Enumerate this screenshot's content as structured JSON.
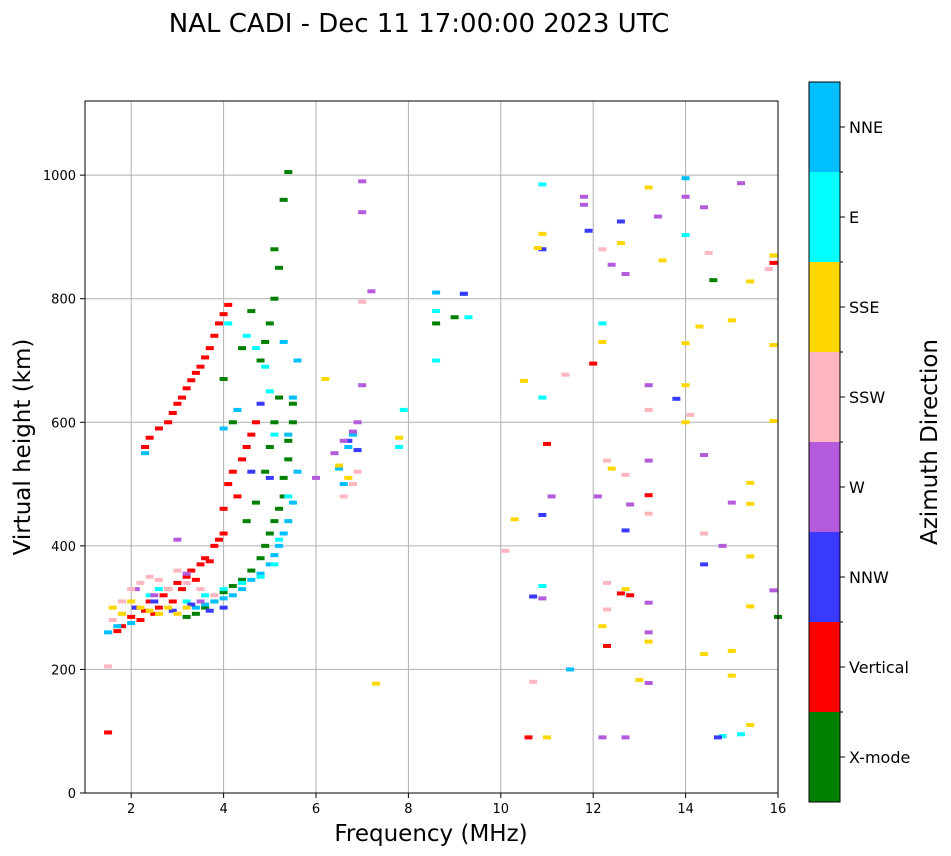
{
  "chart_data": {
    "type": "scatter",
    "title": "NAL CADI - Dec 11 17:00:00 2023 UTC",
    "xlabel": "Frequency (MHz)",
    "ylabel": "Virtual height (km)",
    "xlim": [
      1,
      16
    ],
    "ylim": [
      0,
      1120
    ],
    "xticks": [
      2,
      4,
      6,
      8,
      10,
      12,
      14,
      16
    ],
    "yticks": [
      0,
      200,
      400,
      600,
      800,
      1000
    ],
    "grid": true,
    "colorbar": {
      "label": "Azimuth Direction",
      "categories": [
        {
          "name": "X-mode",
          "color": "#008000"
        },
        {
          "name": "Vertical",
          "color": "#ff0000"
        },
        {
          "name": "NNW",
          "color": "#3a3aff"
        },
        {
          "name": "W",
          "color": "#b45adc"
        },
        {
          "name": "SSW",
          "color": "#ffb6c1"
        },
        {
          "name": "SSE",
          "color": "#ffd700"
        },
        {
          "name": "E",
          "color": "#00ffff"
        },
        {
          "name": "NNE",
          "color": "#00bfff"
        }
      ]
    },
    "series": [
      {
        "name": "Vertical",
        "points": [
          [
            1.5,
            98
          ],
          [
            1.7,
            262
          ],
          [
            1.8,
            270
          ],
          [
            2.0,
            285
          ],
          [
            2.1,
            300
          ],
          [
            2.2,
            280
          ],
          [
            2.3,
            295
          ],
          [
            2.4,
            310
          ],
          [
            2.5,
            290
          ],
          [
            2.6,
            300
          ],
          [
            2.7,
            320
          ],
          [
            2.8,
            330
          ],
          [
            2.9,
            310
          ],
          [
            3.0,
            340
          ],
          [
            3.1,
            330
          ],
          [
            3.2,
            350
          ],
          [
            3.3,
            360
          ],
          [
            3.4,
            345
          ],
          [
            3.5,
            370
          ],
          [
            3.6,
            380
          ],
          [
            3.7,
            375
          ],
          [
            3.8,
            400
          ],
          [
            3.9,
            410
          ],
          [
            4.0,
            420
          ],
          [
            4.0,
            460
          ],
          [
            4.1,
            500
          ],
          [
            4.2,
            520
          ],
          [
            4.3,
            480
          ],
          [
            4.4,
            540
          ],
          [
            4.5,
            560
          ],
          [
            4.6,
            580
          ],
          [
            4.7,
            600
          ],
          [
            2.3,
            560
          ],
          [
            2.4,
            575
          ],
          [
            2.6,
            590
          ],
          [
            2.8,
            600
          ],
          [
            2.9,
            615
          ],
          [
            3.0,
            630
          ],
          [
            3.1,
            640
          ],
          [
            3.2,
            655
          ],
          [
            3.3,
            668
          ],
          [
            3.4,
            680
          ],
          [
            3.5,
            690
          ],
          [
            3.6,
            705
          ],
          [
            3.7,
            720
          ],
          [
            3.8,
            740
          ],
          [
            3.9,
            760
          ],
          [
            4.0,
            775
          ],
          [
            4.1,
            790
          ],
          [
            10.6,
            90
          ],
          [
            11.0,
            565
          ],
          [
            12.0,
            695
          ],
          [
            12.6,
            323
          ],
          [
            12.8,
            320
          ],
          [
            13.2,
            482
          ],
          [
            15.9,
            858
          ],
          [
            12.3,
            238
          ]
        ]
      },
      {
        "name": "X-mode",
        "points": [
          [
            3.2,
            285
          ],
          [
            3.4,
            290
          ],
          [
            3.6,
            300
          ],
          [
            3.8,
            310
          ],
          [
            4.0,
            325
          ],
          [
            4.2,
            335
          ],
          [
            4.4,
            345
          ],
          [
            4.6,
            360
          ],
          [
            4.8,
            380
          ],
          [
            4.9,
            400
          ],
          [
            5.0,
            420
          ],
          [
            5.1,
            440
          ],
          [
            5.2,
            460
          ],
          [
            5.3,
            480
          ],
          [
            5.3,
            510
          ],
          [
            5.4,
            540
          ],
          [
            5.4,
            570
          ],
          [
            5.5,
            600
          ],
          [
            5.5,
            630
          ],
          [
            4.5,
            440
          ],
          [
            4.7,
            470
          ],
          [
            4.9,
            520
          ],
          [
            5.0,
            560
          ],
          [
            5.1,
            600
          ],
          [
            5.2,
            640
          ],
          [
            4.8,
            700
          ],
          [
            4.9,
            730
          ],
          [
            5.0,
            760
          ],
          [
            5.1,
            800
          ],
          [
            5.2,
            850
          ],
          [
            5.1,
            880
          ],
          [
            5.3,
            960
          ],
          [
            5.4,
            1005
          ],
          [
            4.4,
            720
          ],
          [
            4.6,
            780
          ],
          [
            4.0,
            670
          ],
          [
            4.2,
            600
          ],
          [
            16.0,
            285
          ],
          [
            14.6,
            830
          ],
          [
            8.6,
            760
          ],
          [
            9.0,
            770
          ]
        ]
      },
      {
        "name": "NNE",
        "points": [
          [
            1.5,
            260
          ],
          [
            1.7,
            270
          ],
          [
            2.0,
            275
          ],
          [
            3.4,
            300
          ],
          [
            3.6,
            305
          ],
          [
            3.8,
            310
          ],
          [
            4.0,
            315
          ],
          [
            4.2,
            320
          ],
          [
            4.4,
            330
          ],
          [
            4.6,
            345
          ],
          [
            4.8,
            355
          ],
          [
            5.0,
            370
          ],
          [
            5.1,
            385
          ],
          [
            5.2,
            400
          ],
          [
            5.3,
            420
          ],
          [
            5.4,
            440
          ],
          [
            5.5,
            470
          ],
          [
            5.6,
            520
          ],
          [
            5.4,
            580
          ],
          [
            5.5,
            640
          ],
          [
            5.6,
            700
          ],
          [
            5.3,
            730
          ],
          [
            4.0,
            590
          ],
          [
            4.3,
            620
          ],
          [
            2.3,
            550
          ],
          [
            6.5,
            525
          ],
          [
            6.7,
            560
          ],
          [
            6.8,
            580
          ],
          [
            6.6,
            500
          ],
          [
            14.0,
            995
          ],
          [
            8.6,
            810
          ],
          [
            9.2,
            808
          ],
          [
            11.5,
            200
          ]
        ]
      },
      {
        "name": "E",
        "points": [
          [
            2.4,
            320
          ],
          [
            2.6,
            330
          ],
          [
            3.2,
            310
          ],
          [
            3.6,
            320
          ],
          [
            4.0,
            330
          ],
          [
            4.4,
            340
          ],
          [
            4.8,
            350
          ],
          [
            5.1,
            370
          ],
          [
            5.2,
            410
          ],
          [
            5.4,
            480
          ],
          [
            5.1,
            580
          ],
          [
            5.0,
            650
          ],
          [
            4.9,
            690
          ],
          [
            4.7,
            720
          ],
          [
            4.5,
            740
          ],
          [
            4.1,
            760
          ],
          [
            10.9,
            985
          ],
          [
            10.9,
            335
          ],
          [
            10.9,
            640
          ],
          [
            12.2,
            760
          ],
          [
            14.0,
            903
          ],
          [
            14.8,
            92
          ],
          [
            15.2,
            95
          ],
          [
            8.6,
            780
          ],
          [
            8.6,
            700
          ],
          [
            9.3,
            770
          ],
          [
            7.9,
            620
          ],
          [
            7.8,
            560
          ]
        ]
      },
      {
        "name": "NNW",
        "points": [
          [
            2.1,
            300
          ],
          [
            2.5,
            310
          ],
          [
            2.9,
            295
          ],
          [
            3.3,
            305
          ],
          [
            3.7,
            295
          ],
          [
            4.0,
            300
          ],
          [
            4.6,
            520
          ],
          [
            5.0,
            510
          ],
          [
            4.8,
            630
          ],
          [
            6.9,
            555
          ],
          [
            10.7,
            318
          ],
          [
            10.9,
            450
          ],
          [
            10.9,
            880
          ],
          [
            11.9,
            910
          ],
          [
            12.6,
            925
          ],
          [
            12.7,
            425
          ],
          [
            13.8,
            638
          ],
          [
            14.4,
            370
          ],
          [
            14.7,
            90
          ],
          [
            9.2,
            808
          ],
          [
            6.7,
            570
          ]
        ]
      },
      {
        "name": "W",
        "points": [
          [
            2.1,
            330
          ],
          [
            2.5,
            320
          ],
          [
            3.0,
            410
          ],
          [
            3.2,
            355
          ],
          [
            3.5,
            310
          ],
          [
            6.0,
            510
          ],
          [
            6.4,
            550
          ],
          [
            6.6,
            570
          ],
          [
            6.8,
            585
          ],
          [
            6.9,
            600
          ],
          [
            7.0,
            660
          ],
          [
            7.2,
            812
          ],
          [
            7.0,
            990
          ],
          [
            7.0,
            940
          ],
          [
            10.9,
            315
          ],
          [
            11.1,
            480
          ],
          [
            11.8,
            965
          ],
          [
            11.8,
            952
          ],
          [
            12.1,
            480
          ],
          [
            12.4,
            855
          ],
          [
            12.7,
            840
          ],
          [
            12.8,
            467
          ],
          [
            13.2,
            660
          ],
          [
            13.2,
            538
          ],
          [
            13.2,
            308
          ],
          [
            13.2,
            260
          ],
          [
            13.2,
            178
          ],
          [
            13.4,
            933
          ],
          [
            14.0,
            965
          ],
          [
            14.4,
            948
          ],
          [
            14.4,
            547
          ],
          [
            14.8,
            400
          ],
          [
            15.2,
            987
          ],
          [
            15.0,
            470
          ],
          [
            15.9,
            328
          ],
          [
            12.2,
            90
          ],
          [
            12.7,
            90
          ]
        ]
      },
      {
        "name": "SSW",
        "points": [
          [
            1.5,
            205
          ],
          [
            1.6,
            280
          ],
          [
            1.8,
            310
          ],
          [
            2.0,
            330
          ],
          [
            2.2,
            340
          ],
          [
            2.4,
            350
          ],
          [
            2.6,
            345
          ],
          [
            2.8,
            330
          ],
          [
            3.0,
            360
          ],
          [
            3.2,
            340
          ],
          [
            3.5,
            330
          ],
          [
            3.8,
            320
          ],
          [
            6.6,
            480
          ],
          [
            6.8,
            500
          ],
          [
            6.9,
            520
          ],
          [
            7.0,
            795
          ],
          [
            10.1,
            392
          ],
          [
            10.7,
            180
          ],
          [
            11.4,
            677
          ],
          [
            12.3,
            340
          ],
          [
            12.3,
            538
          ],
          [
            12.3,
            297
          ],
          [
            12.7,
            515
          ],
          [
            13.2,
            452
          ],
          [
            13.2,
            620
          ],
          [
            14.1,
            612
          ],
          [
            14.4,
            420
          ],
          [
            14.5,
            874
          ],
          [
            15.8,
            848
          ],
          [
            12.2,
            880
          ]
        ]
      },
      {
        "name": "SSE",
        "points": [
          [
            1.6,
            300
          ],
          [
            1.8,
            290
          ],
          [
            2.0,
            310
          ],
          [
            2.2,
            300
          ],
          [
            2.4,
            295
          ],
          [
            2.6,
            290
          ],
          [
            2.8,
            300
          ],
          [
            3.0,
            290
          ],
          [
            3.2,
            300
          ],
          [
            6.2,
            670
          ],
          [
            6.5,
            530
          ],
          [
            6.7,
            510
          ],
          [
            7.3,
            177
          ],
          [
            7.8,
            575
          ],
          [
            10.3,
            443
          ],
          [
            10.5,
            667
          ],
          [
            10.8,
            882
          ],
          [
            10.9,
            905
          ],
          [
            11.0,
            90
          ],
          [
            12.2,
            270
          ],
          [
            12.2,
            730
          ],
          [
            12.4,
            525
          ],
          [
            12.6,
            890
          ],
          [
            12.7,
            330
          ],
          [
            13.0,
            183
          ],
          [
            13.2,
            980
          ],
          [
            13.2,
            245
          ],
          [
            13.5,
            862
          ],
          [
            14.0,
            728
          ],
          [
            14.0,
            660
          ],
          [
            14.0,
            600
          ],
          [
            14.3,
            755
          ],
          [
            14.4,
            225
          ],
          [
            15.0,
            765
          ],
          [
            15.0,
            230
          ],
          [
            15.0,
            190
          ],
          [
            15.4,
            828
          ],
          [
            15.4,
            502
          ],
          [
            15.4,
            468
          ],
          [
            15.4,
            383
          ],
          [
            15.4,
            302
          ],
          [
            15.4,
            110
          ],
          [
            15.9,
            870
          ],
          [
            15.9,
            725
          ],
          [
            15.9,
            602
          ]
        ]
      }
    ]
  }
}
